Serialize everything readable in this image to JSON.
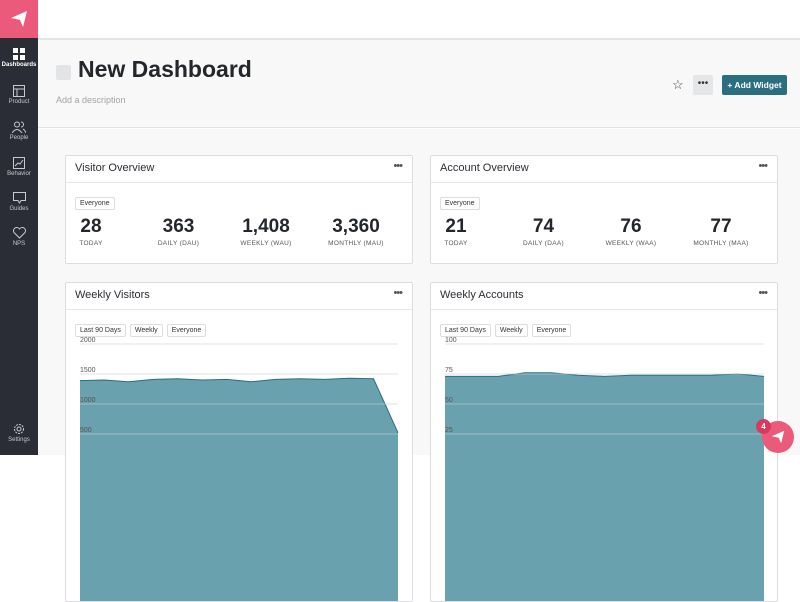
{
  "sidebar": {
    "items": [
      {
        "label": "Dashboards",
        "icon": "grid-icon"
      },
      {
        "label": "Product",
        "icon": "product-icon"
      },
      {
        "label": "People",
        "icon": "people-icon"
      },
      {
        "label": "Behavior",
        "icon": "chart-icon"
      },
      {
        "label": "Guides",
        "icon": "message-icon"
      },
      {
        "label": "NPS",
        "icon": "heart-icon"
      }
    ],
    "settings": "Settings"
  },
  "header": {
    "title": "New Dashboard",
    "description_placeholder": "Add a description",
    "more": "•••",
    "add_widget": "+ Add Widget"
  },
  "visitor_overview": {
    "title": "Visitor Overview",
    "filter": "Everyone",
    "stats": [
      {
        "value": "28",
        "label": "TODAY"
      },
      {
        "value": "363",
        "label": "DAILY (DAU)"
      },
      {
        "value": "1,408",
        "label": "WEEKLY (WAU)"
      },
      {
        "value": "3,360",
        "label": "MONTHLY (MAU)"
      }
    ]
  },
  "account_overview": {
    "title": "Account Overview",
    "filter": "Everyone",
    "stats": [
      {
        "value": "21",
        "label": "TODAY"
      },
      {
        "value": "74",
        "label": "DAILY (DAA)"
      },
      {
        "value": "76",
        "label": "WEEKLY (WAA)"
      },
      {
        "value": "77",
        "label": "MONTHLY (MAA)"
      }
    ]
  },
  "weekly_visitors": {
    "title": "Weekly Visitors",
    "filters": [
      "Last 90 Days",
      "Weekly",
      "Everyone"
    ]
  },
  "weekly_accounts": {
    "title": "Weekly Accounts",
    "filters": [
      "Last 90 Days",
      "Weekly",
      "Everyone"
    ]
  },
  "menu": "•••",
  "notification_count": "4",
  "colors": {
    "brand": "#ec5a7b",
    "accent": "#2b6e80",
    "area": "#6aa1ae"
  },
  "chart_data": [
    {
      "type": "area",
      "yticks": [
        500,
        1000,
        1500,
        2000
      ],
      "ylim": [
        0,
        2000
      ],
      "values": [
        1390,
        1400,
        1370,
        1410,
        1420,
        1400,
        1410,
        1370,
        1410,
        1420,
        1410,
        1430,
        1420,
        520
      ]
    },
    {
      "type": "area",
      "yticks": [
        25,
        50,
        75,
        100
      ],
      "ylim": [
        0,
        100
      ],
      "values": [
        73,
        73,
        73,
        76,
        76,
        74,
        73,
        74,
        74,
        74,
        74,
        75,
        73
      ]
    }
  ]
}
